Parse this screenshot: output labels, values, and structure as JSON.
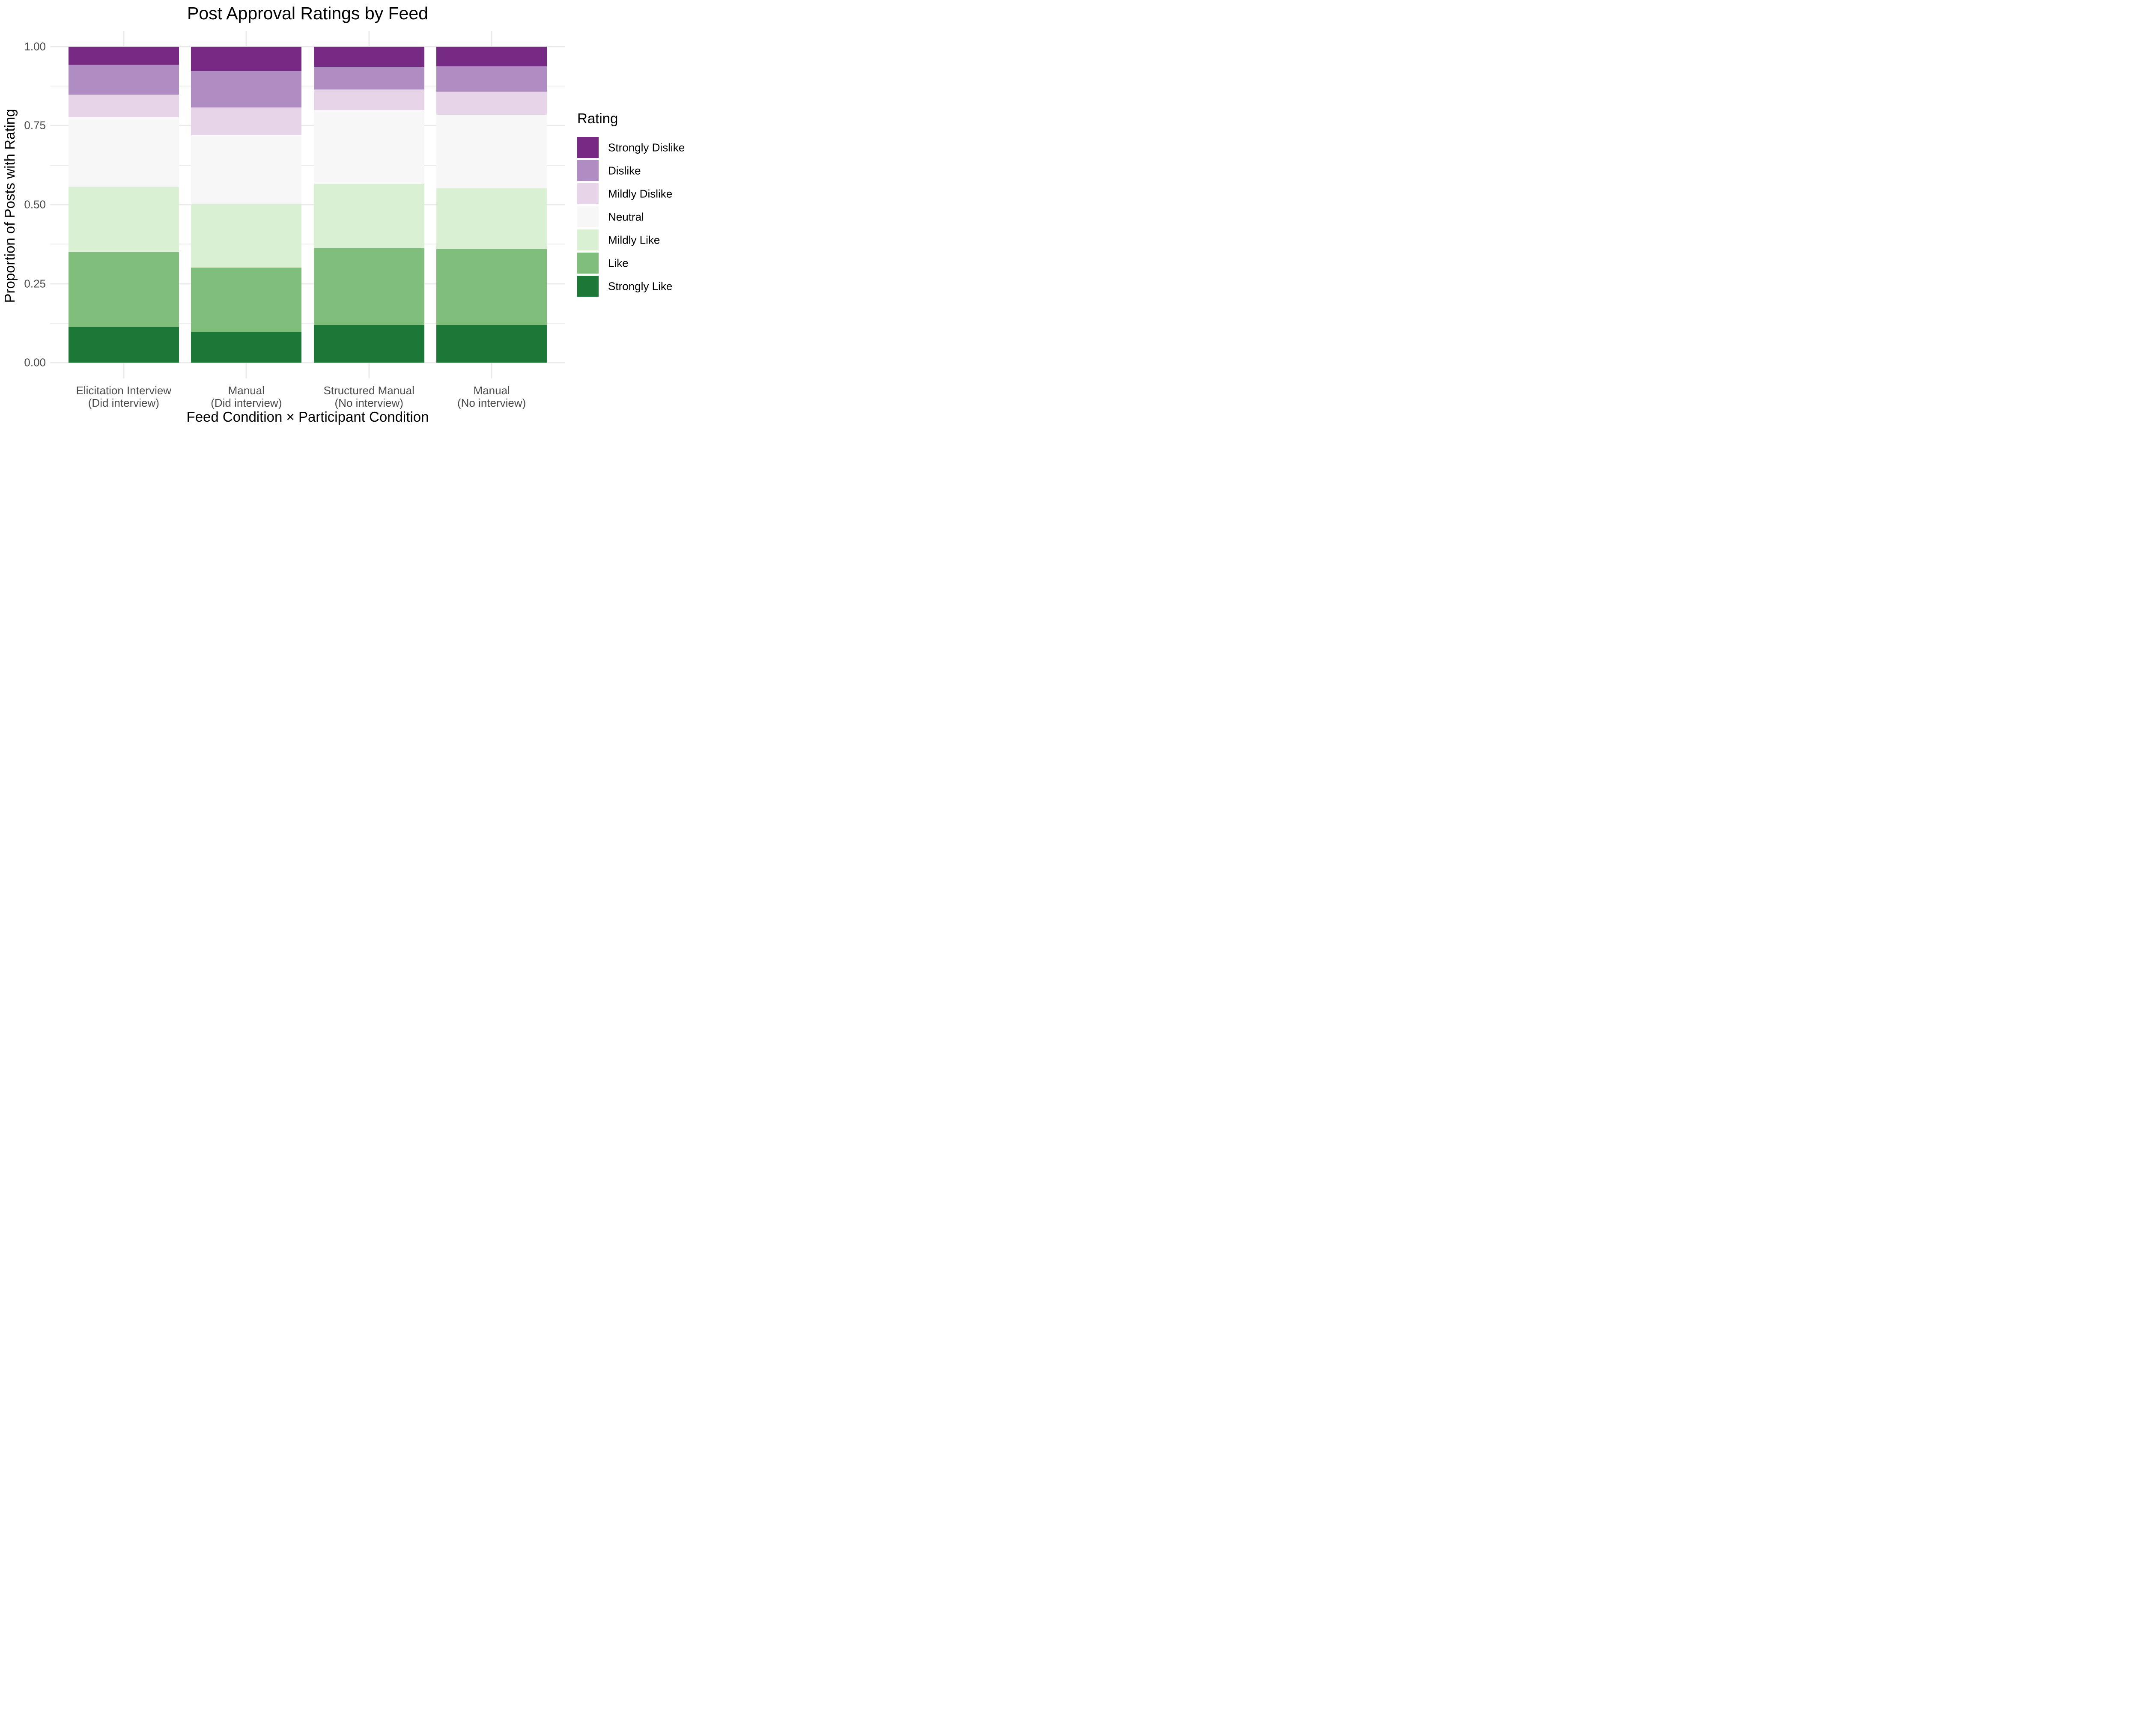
{
  "chart_data": {
    "type": "bar",
    "stacked": true,
    "title": "Post Approval Ratings by Feed",
    "xlabel": "Feed Condition × Participant Condition",
    "ylabel": "Proportion of Posts with Rating",
    "ylim": [
      0,
      1
    ],
    "y_major_ticks": [
      0,
      0.25,
      0.5,
      0.75,
      1
    ],
    "y_tick_labels": [
      "0.00",
      "0.25",
      "0.50",
      "0.75",
      "1.00"
    ],
    "y_minor_ticks": [
      0.125,
      0.375,
      0.625,
      0.875
    ],
    "grid": true,
    "legend_title": "Rating",
    "legend_position": "right",
    "categories": [
      {
        "line1": "Elicitation Interview",
        "line2": "(Did interview)"
      },
      {
        "line1": "Manual",
        "line2": "(Did interview)"
      },
      {
        "line1": "Structured Manual",
        "line2": "(No interview)"
      },
      {
        "line1": "Manual",
        "line2": "(No interview)"
      }
    ],
    "stack_order_bottom_to_top": [
      "Strongly Like",
      "Like",
      "Mildly Like",
      "Neutral",
      "Mildly Dislike",
      "Dislike",
      "Strongly Dislike"
    ],
    "series": [
      {
        "name": "Strongly Dislike",
        "color": "#762a83",
        "values": [
          0.057,
          0.077,
          0.064,
          0.062
        ]
      },
      {
        "name": "Dislike",
        "color": "#af8dc3",
        "values": [
          0.095,
          0.115,
          0.072,
          0.08
        ]
      },
      {
        "name": "Mildly Dislike",
        "color": "#e7d4e8",
        "values": [
          0.071,
          0.088,
          0.064,
          0.074
        ]
      },
      {
        "name": "Neutral",
        "color": "#f7f7f7",
        "values": [
          0.221,
          0.219,
          0.234,
          0.233
        ]
      },
      {
        "name": "Mildly Like",
        "color": "#d9f0d3",
        "values": [
          0.206,
          0.2,
          0.204,
          0.192
        ]
      },
      {
        "name": "Like",
        "color": "#7fbf7b",
        "values": [
          0.238,
          0.204,
          0.243,
          0.24
        ]
      },
      {
        "name": "Strongly Like",
        "color": "#1b7837",
        "values": [
          0.112,
          0.097,
          0.119,
          0.119
        ]
      }
    ]
  },
  "style_colors": {
    "gridline": "#ebebeb",
    "tick_text": "#4d4d4d",
    "title_text": "#000000",
    "background": "#ffffff"
  }
}
